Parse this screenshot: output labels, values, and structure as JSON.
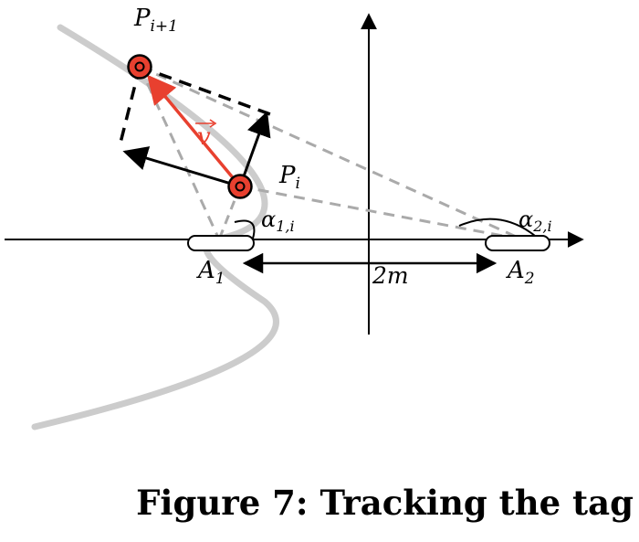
{
  "labels": {
    "p_next": {
      "base": "P",
      "sub": "i+1"
    },
    "p_i": {
      "base": "P",
      "sub": "i"
    },
    "vector": "v",
    "alpha1": {
      "base": "α",
      "sub": "1,i"
    },
    "alpha2": {
      "base": "α",
      "sub": "2,i"
    },
    "a1": {
      "base": "A",
      "sub": "1"
    },
    "a2": {
      "base": "A",
      "sub": "2"
    },
    "distance": "2m"
  },
  "caption": "Figure 7: Tracking the tag",
  "colors": {
    "vector": "#e8402f",
    "tag_fill": "#e8402f",
    "curve": "#cccccc",
    "dashed": "#aaaaaa",
    "ink": "#000000"
  }
}
